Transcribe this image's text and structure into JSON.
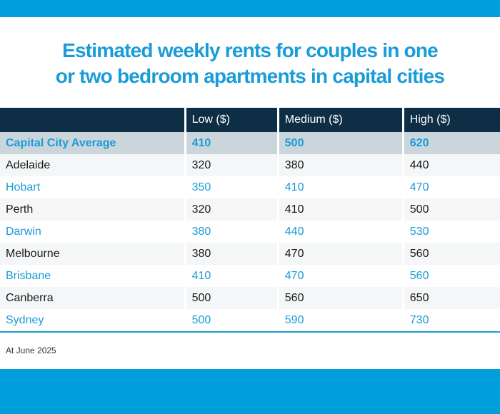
{
  "header": {
    "title_line1": "Estimated weekly rents for couples in one",
    "title_line2": "or two bedroom apartments in capital cities"
  },
  "footnote": "At June 2025",
  "colors": {
    "strip_blue": "#009edb",
    "title_blue": "#1a9cd8",
    "header_navy": "#0d2e45",
    "average_row_bg": "#cbd5dc",
    "striped_row_bg": "#f4f6f7"
  },
  "chart_data": {
    "type": "table",
    "title": "Estimated weekly rents for couples in one or two bedroom apartments in capital cities",
    "columns": [
      "",
      "Low ($)",
      "Medium ($)",
      "High ($)"
    ],
    "rows": [
      {
        "label": "Capital City Average",
        "low": 410,
        "medium": 500,
        "high": 620
      },
      {
        "label": "Adelaide",
        "low": 320,
        "medium": 380,
        "high": 440
      },
      {
        "label": "Hobart",
        "low": 350,
        "medium": 410,
        "high": 470
      },
      {
        "label": "Perth",
        "low": 320,
        "medium": 410,
        "high": 500
      },
      {
        "label": "Darwin",
        "low": 380,
        "medium": 440,
        "high": 530
      },
      {
        "label": "Melbourne",
        "low": 380,
        "medium": 470,
        "high": 560
      },
      {
        "label": "Brisbane",
        "low": 410,
        "medium": 470,
        "high": 560
      },
      {
        "label": "Canberra",
        "low": 500,
        "medium": 560,
        "high": 650
      },
      {
        "label": "Sydney",
        "low": 500,
        "medium": 590,
        "high": 730
      }
    ],
    "footnote": "At June 2025",
    "legend_position": "none",
    "grid": false
  }
}
